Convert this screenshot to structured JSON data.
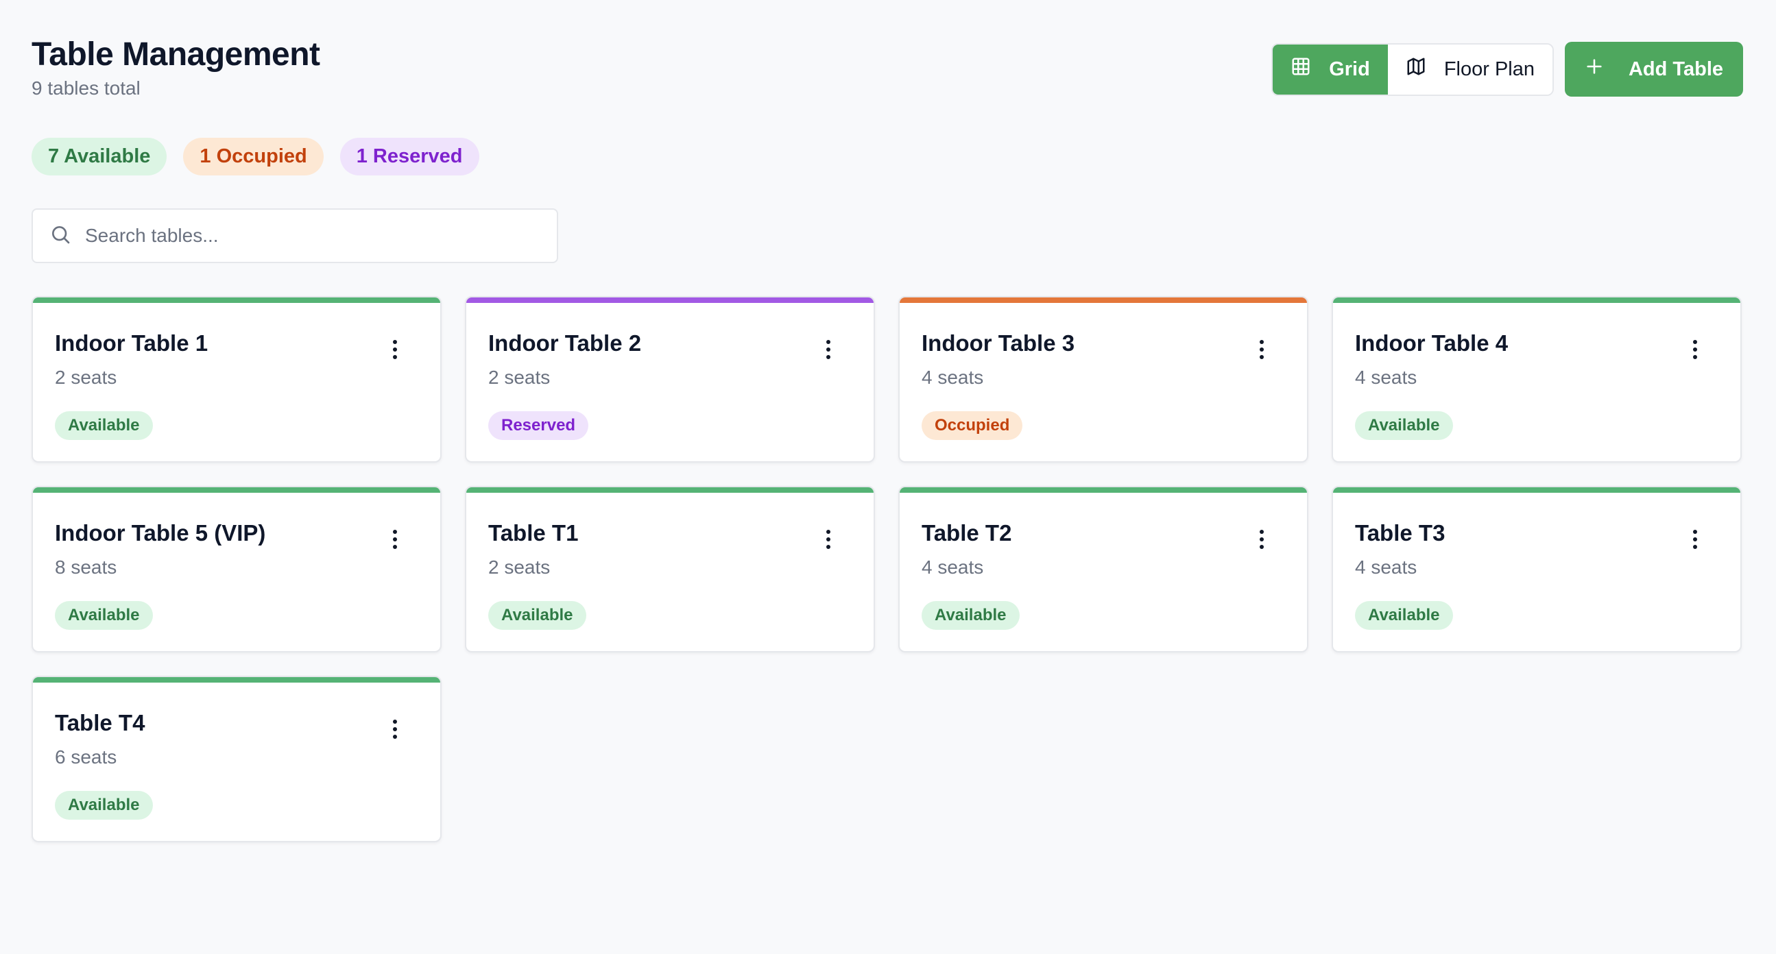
{
  "header": {
    "title": "Table Management",
    "subtitle": "9 tables total"
  },
  "toolbar": {
    "grid_label": "Grid",
    "grid_icon": "grid-icon",
    "floor_plan_label": "Floor Plan",
    "floor_plan_icon": "map-icon",
    "add_label": "Add Table",
    "add_icon": "plus-icon"
  },
  "summary": {
    "available": "7 Available",
    "occupied": "1 Occupied",
    "reserved": "1 Reserved"
  },
  "search": {
    "placeholder": "Search tables...",
    "value": ""
  },
  "colors": {
    "brand_green": "#4ea75e",
    "available": "#55b375",
    "reserved": "#a259e4",
    "occupied": "#e4773a"
  },
  "tables": [
    {
      "name": "Indoor Table 1",
      "seats": "2 seats",
      "status": "Available",
      "status_key": "available"
    },
    {
      "name": "Indoor Table 2",
      "seats": "2 seats",
      "status": "Reserved",
      "status_key": "reserved"
    },
    {
      "name": "Indoor Table 3",
      "seats": "4 seats",
      "status": "Occupied",
      "status_key": "occupied"
    },
    {
      "name": "Indoor Table 4",
      "seats": "4 seats",
      "status": "Available",
      "status_key": "available"
    },
    {
      "name": "Indoor Table 5 (VIP)",
      "seats": "8 seats",
      "status": "Available",
      "status_key": "available"
    },
    {
      "name": "Table T1",
      "seats": "2 seats",
      "status": "Available",
      "status_key": "available"
    },
    {
      "name": "Table T2",
      "seats": "4 seats",
      "status": "Available",
      "status_key": "available"
    },
    {
      "name": "Table T3",
      "seats": "4 seats",
      "status": "Available",
      "status_key": "available"
    },
    {
      "name": "Table T4",
      "seats": "6 seats",
      "status": "Available",
      "status_key": "available"
    }
  ]
}
